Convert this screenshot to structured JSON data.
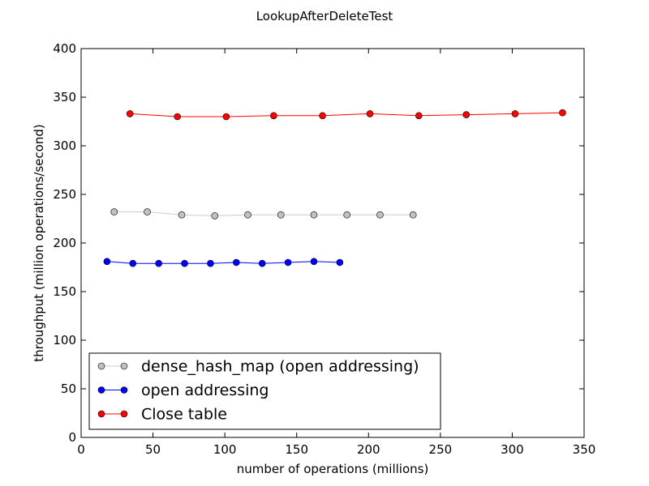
{
  "chart_data": {
    "type": "line",
    "title": "LookupAfterDeleteTest",
    "xlabel": "number of operations (millions)",
    "ylabel": "throughput (million operations/second)",
    "xlim": [
      0,
      350
    ],
    "ylim": [
      0,
      400
    ],
    "xticks": [
      0,
      50,
      100,
      150,
      200,
      250,
      300,
      350
    ],
    "yticks": [
      0,
      50,
      100,
      150,
      200,
      250,
      300,
      350,
      400
    ],
    "grid": false,
    "legend_position": "lower-left",
    "series": [
      {
        "name": "dense_hash_map (open addressing)",
        "color": "#c0c0c0",
        "line_color": "#cccccc",
        "x": [
          23,
          46,
          70,
          93,
          116,
          139,
          162,
          185,
          208,
          231
        ],
        "y": [
          232,
          232,
          229,
          228,
          229,
          229,
          229,
          229,
          229,
          229
        ]
      },
      {
        "name": "open addressing",
        "color": "#0000ff",
        "line_color": "#0000ff",
        "x": [
          18,
          36,
          54,
          72,
          90,
          108,
          126,
          144,
          162,
          180
        ],
        "y": [
          181,
          179,
          179,
          179,
          179,
          180,
          179,
          180,
          181,
          180
        ]
      },
      {
        "name": "Close table",
        "color": "#ff0000",
        "line_color": "#ff0000",
        "x": [
          34,
          67,
          101,
          134,
          168,
          201,
          235,
          268,
          302,
          335
        ],
        "y": [
          333,
          330,
          330,
          331,
          331,
          333,
          331,
          332,
          333,
          334
        ]
      }
    ]
  }
}
